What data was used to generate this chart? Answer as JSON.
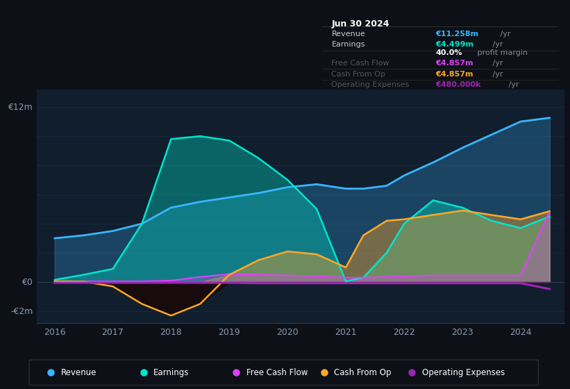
{
  "bg_color": "#0d1117",
  "plot_bg_color": "#101e2e",
  "years": [
    2016.0,
    2016.5,
    2017.0,
    2017.5,
    2018.0,
    2018.5,
    2019.0,
    2019.5,
    2020.0,
    2020.5,
    2021.0,
    2021.3,
    2021.7,
    2022.0,
    2022.5,
    2023.0,
    2023.5,
    2024.0,
    2024.5
  ],
  "revenue": [
    3.0,
    3.2,
    3.5,
    4.0,
    5.1,
    5.5,
    5.8,
    6.1,
    6.5,
    6.7,
    6.4,
    6.4,
    6.6,
    7.3,
    8.2,
    9.2,
    10.1,
    11.0,
    11.258
  ],
  "earnings": [
    0.15,
    0.5,
    0.9,
    4.0,
    9.8,
    10.0,
    9.7,
    8.5,
    7.0,
    5.0,
    0.05,
    0.3,
    2.0,
    4.0,
    5.6,
    5.1,
    4.2,
    3.7,
    4.499
  ],
  "fcf": [
    0.05,
    0.05,
    0.05,
    0.05,
    0.1,
    0.35,
    0.55,
    0.5,
    0.45,
    0.4,
    0.3,
    0.3,
    0.35,
    0.4,
    0.45,
    0.45,
    0.45,
    0.45,
    4.857
  ],
  "cash_from_op": [
    0.05,
    0.03,
    -0.3,
    -1.5,
    -2.3,
    -1.5,
    0.5,
    1.5,
    2.1,
    1.9,
    1.0,
    3.2,
    4.2,
    4.3,
    4.6,
    4.9,
    4.6,
    4.3,
    4.857
  ],
  "op_expenses": [
    -0.05,
    -0.05,
    -0.05,
    -0.05,
    -0.05,
    -0.05,
    -0.05,
    -0.08,
    -0.08,
    -0.08,
    -0.08,
    -0.08,
    -0.08,
    -0.08,
    -0.08,
    -0.08,
    -0.08,
    -0.08,
    -0.48
  ],
  "revenue_color": "#38b6ff",
  "earnings_color": "#00e5cc",
  "fcf_color": "#e040fb",
  "cash_from_op_color": "#ffa726",
  "op_expenses_color": "#9c27b0",
  "grid_color": "#1a3040",
  "text_color": "#8a9bb0",
  "ylabel_12m": "€12m",
  "ylabel_0": "€0",
  "ylabel_neg2m": "-€2m",
  "xlim": [
    2015.7,
    2024.75
  ],
  "ylim_min": -2.8,
  "ylim_max": 13.2,
  "xticks": [
    2016,
    2017,
    2018,
    2019,
    2020,
    2021,
    2022,
    2023,
    2024
  ],
  "info_box": {
    "date": "Jun 30 2024",
    "rows": [
      {
        "label": "Revenue",
        "value": "€11.258m",
        "unit": " /yr",
        "color": "#38b6ff",
        "dim": false
      },
      {
        "label": "Earnings",
        "value": "€4.499m",
        "unit": " /yr",
        "color": "#00e5cc",
        "dim": false
      },
      {
        "label": "",
        "value": "40.0%",
        "unit": " profit margin",
        "color": "#ffffff",
        "dim": false
      },
      {
        "label": "Free Cash Flow",
        "value": "€4.857m",
        "unit": " /yr",
        "color": "#e040fb",
        "dim": true
      },
      {
        "label": "Cash From Op",
        "value": "€4.857m",
        "unit": " /yr",
        "color": "#ffa726",
        "dim": true
      },
      {
        "label": "Operating Expenses",
        "value": "€480.000k",
        "unit": " /yr",
        "color": "#9c27b0",
        "dim": true
      }
    ]
  },
  "legend": [
    {
      "label": "Revenue",
      "color": "#38b6ff"
    },
    {
      "label": "Earnings",
      "color": "#00e5cc"
    },
    {
      "label": "Free Cash Flow",
      "color": "#e040fb"
    },
    {
      "label": "Cash From Op",
      "color": "#ffa726"
    },
    {
      "label": "Operating Expenses",
      "color": "#9c27b0"
    }
  ]
}
